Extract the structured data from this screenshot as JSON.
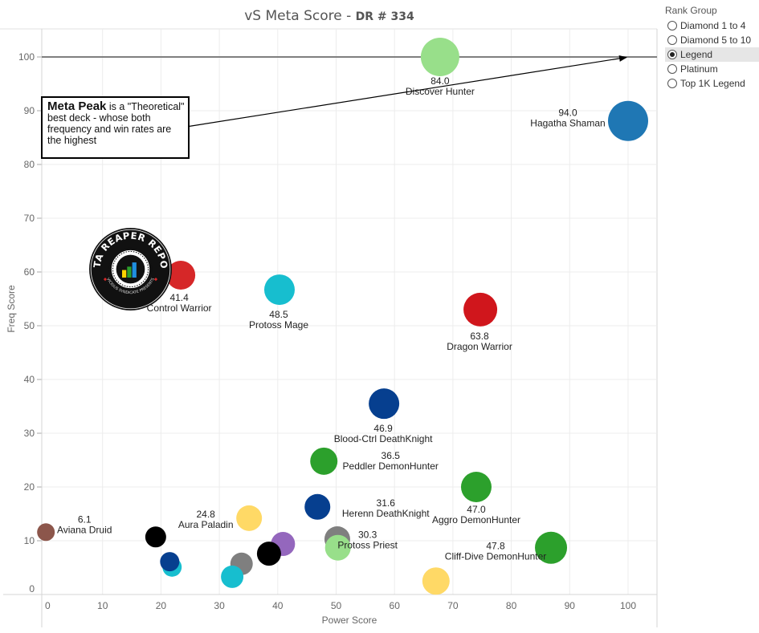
{
  "title": {
    "main": "vS Meta Score - ",
    "sub": "DR # 334"
  },
  "legend": {
    "title": "Rank Group",
    "options": [
      {
        "label": "Diamond 1 to 4",
        "selected": false
      },
      {
        "label": "Diamond 5 to 10",
        "selected": false
      },
      {
        "label": "Legend",
        "selected": true
      },
      {
        "label": "Platinum",
        "selected": false
      },
      {
        "label": "Top 1K Legend",
        "selected": false
      }
    ]
  },
  "callout": {
    "bold": "Meta Peak",
    "text": " is a \"Theoretical\" best deck - whose both frequency and win rates are the highest"
  },
  "logo": {
    "text_top": "DATA REAPER REPORT",
    "text_bottom": "VICIOUS SYNDICATE PRESENTS"
  },
  "chart_data": {
    "type": "scatter",
    "title": "vS Meta Score - DR # 334",
    "xlabel": "Power Score",
    "ylabel": "Freq Score",
    "xlim": [
      0,
      105
    ],
    "ylim": [
      0,
      105
    ],
    "xticks": [
      "0",
      "10",
      "20",
      "30",
      "40",
      "50",
      "60",
      "70",
      "80",
      "90",
      "100"
    ],
    "yticks": [
      "0",
      "10",
      "20",
      "30",
      "40",
      "50",
      "60",
      "70",
      "80",
      "90",
      "100"
    ],
    "grid": true,
    "reference_line": {
      "y": 100,
      "label": "Meta Peak"
    },
    "points": [
      {
        "name": "Discover Hunter",
        "score": "84.0",
        "x": 67.8,
        "y": 100.0,
        "size": 24,
        "color": "#98df8a"
      },
      {
        "name": "Hagatha Shaman",
        "score": "94.0",
        "x": 100.0,
        "y": 88.1,
        "size": 25,
        "color": "#1f77b4"
      },
      {
        "name": "Control Warrior",
        "score": "41.4",
        "x": 23.4,
        "y": 59.4,
        "size": 18,
        "color": "#d62728"
      },
      {
        "name": "Protoss Mage",
        "score": "48.5",
        "x": 40.3,
        "y": 56.7,
        "size": 19,
        "color": "#17becf"
      },
      {
        "name": "Dragon Warrior",
        "score": "63.8",
        "x": 74.7,
        "y": 53.0,
        "size": 21,
        "color": "#d0161c"
      },
      {
        "name": "Blood-Ctrl DeathKnight",
        "score": "46.9",
        "x": 58.2,
        "y": 35.5,
        "size": 19,
        "color": "#063f8f"
      },
      {
        "name": "Peddler DemonHunter",
        "score": "36.5",
        "x": 47.9,
        "y": 24.8,
        "size": 17,
        "color": "#2ca02c"
      },
      {
        "name": "Aggro DemonHunter",
        "score": "47.0",
        "x": 74.0,
        "y": 20.0,
        "size": 19,
        "color": "#2ca02c"
      },
      {
        "name": "Herenn DeathKnight",
        "score": "31.6",
        "x": 46.8,
        "y": 16.3,
        "size": 16,
        "color": "#063f8f"
      },
      {
        "name": "Aura Paladin",
        "score": "24.8",
        "x": 35.1,
        "y": 14.2,
        "size": 16,
        "color": "#ffd966"
      },
      {
        "name": "Aviana Druid",
        "score": "6.1",
        "x": 0.3,
        "y": 11.6,
        "size": 11,
        "color": "#8c564b"
      },
      {
        "name": "",
        "score": "",
        "x": 50.2,
        "y": 10.3,
        "size": 16,
        "color": "#7f7f7f"
      },
      {
        "name": "Protoss Priest",
        "score": "30.3",
        "x": 50.3,
        "y": 8.7,
        "size": 16,
        "color": "#98df8a"
      },
      {
        "name": "Cliff-Dive DemonHunter",
        "score": "47.8",
        "x": 86.8,
        "y": 8.7,
        "size": 20,
        "color": "#2ca02c"
      },
      {
        "name": "",
        "score": "",
        "x": 19.1,
        "y": 10.7,
        "size": 13,
        "color": "#000000"
      },
      {
        "name": "",
        "score": "",
        "x": 21.9,
        "y": 5.1,
        "size": 12,
        "color": "#17becf"
      },
      {
        "name": "",
        "score": "",
        "x": 21.5,
        "y": 6.1,
        "size": 12,
        "color": "#063f8f"
      },
      {
        "name": "",
        "score": "",
        "x": 33.8,
        "y": 5.7,
        "size": 14,
        "color": "#7f7f7f"
      },
      {
        "name": "",
        "score": "",
        "x": 32.2,
        "y": 3.3,
        "size": 14,
        "color": "#17becf"
      },
      {
        "name": "",
        "score": "",
        "x": 40.9,
        "y": 9.4,
        "size": 15,
        "color": "#9467bd"
      },
      {
        "name": "",
        "score": "",
        "x": 38.5,
        "y": 7.6,
        "size": 15,
        "color": "#000000"
      },
      {
        "name": "",
        "score": "",
        "x": 67.1,
        "y": 2.5,
        "size": 17,
        "color": "#ffd966"
      }
    ]
  }
}
